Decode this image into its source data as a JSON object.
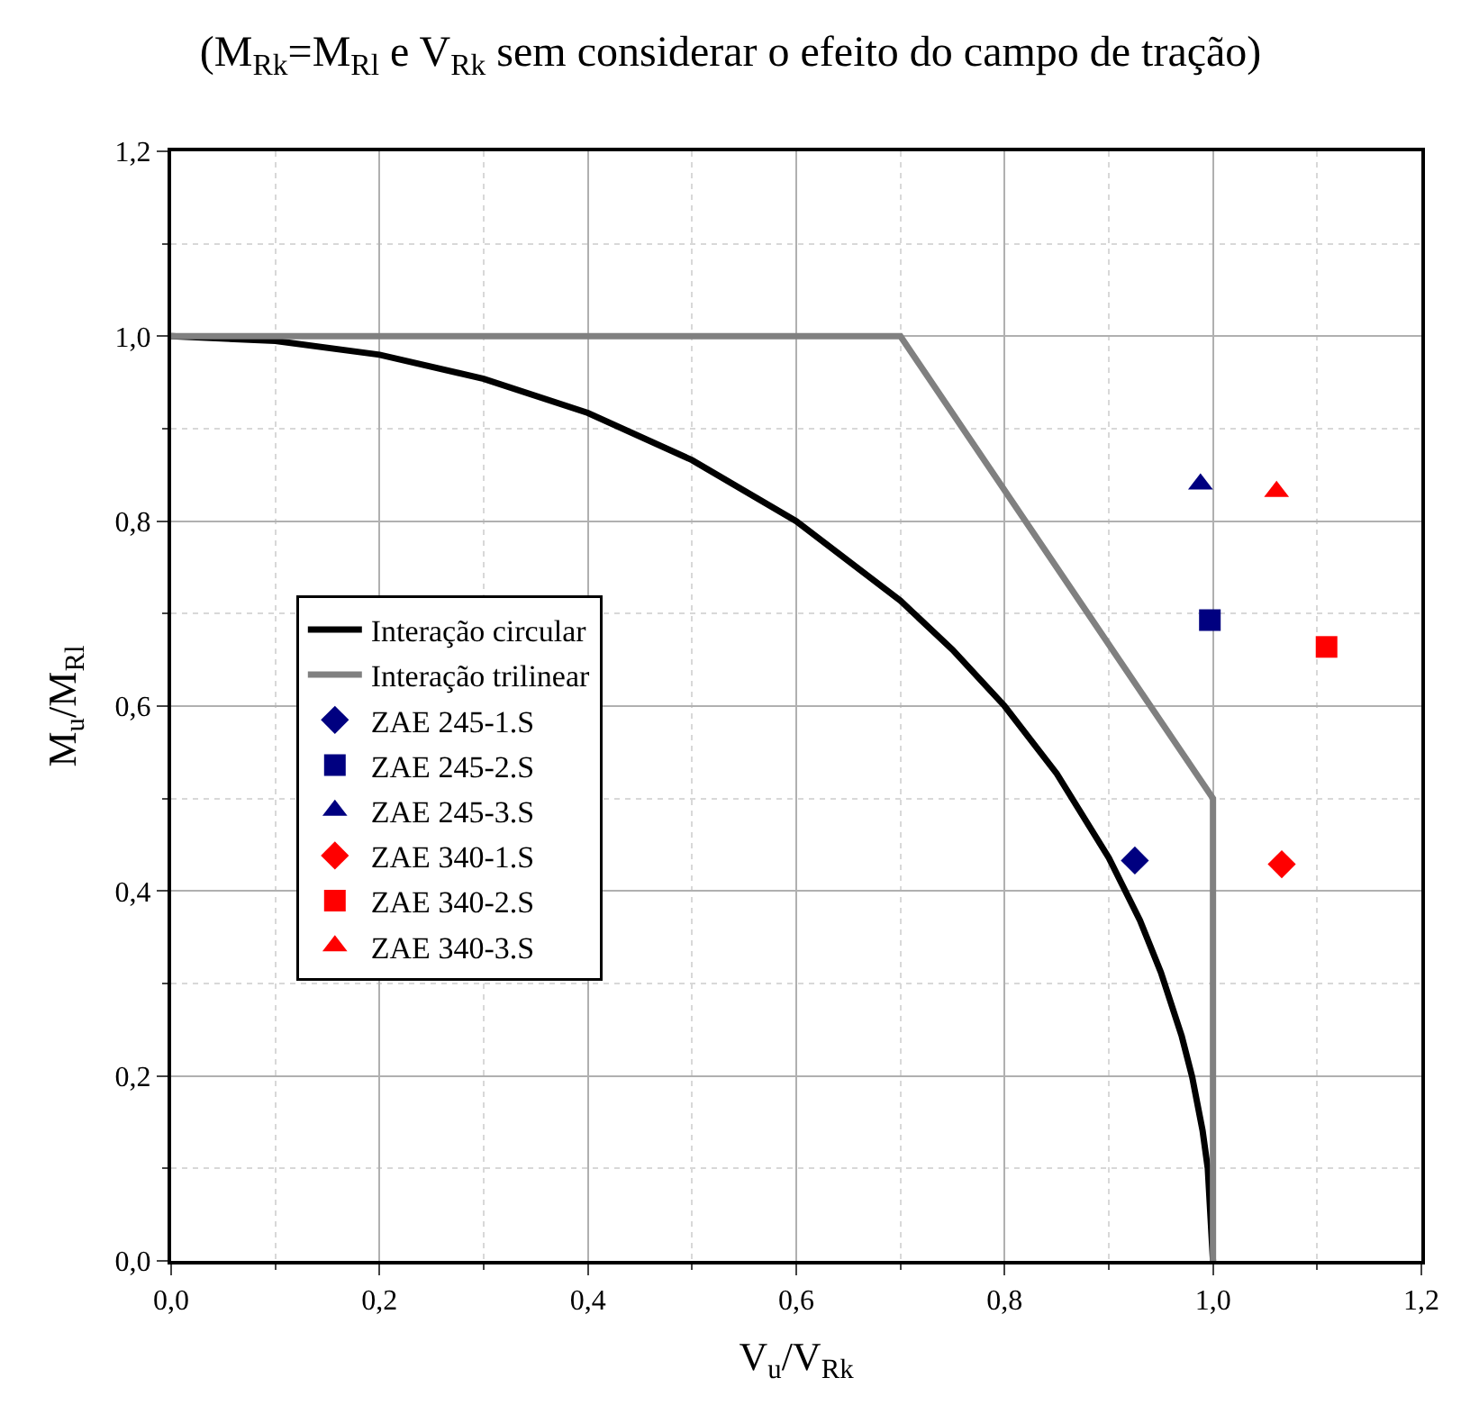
{
  "chart_data": {
    "type": "scatter",
    "title": "(M$_{Rk}$=M$_{Rl}$ e V$_{Rk}$ sem considerar o efeito do campo de tração)",
    "xlabel": "V$_{u}$/V$_{Rk}$",
    "ylabel": "M$_{u}$/M$_{Rl}$",
    "xlim": [
      0,
      1.2
    ],
    "ylim": [
      0,
      1.2
    ],
    "xticks": [
      {
        "value": 0,
        "label": "0,0"
      },
      {
        "value": 0.2,
        "label": "0,2"
      },
      {
        "value": 0.4,
        "label": "0,4"
      },
      {
        "value": 0.6,
        "label": "0,6"
      },
      {
        "value": 0.8,
        "label": "0,8"
      },
      {
        "value": 1.0,
        "label": "1,0"
      },
      {
        "value": 1.2,
        "label": "1,2"
      }
    ],
    "yticks": [
      {
        "value": 0,
        "label": "0,0"
      },
      {
        "value": 0.2,
        "label": "0,2"
      },
      {
        "value": 0.4,
        "label": "0,4"
      },
      {
        "value": 0.6,
        "label": "0,6"
      },
      {
        "value": 0.8,
        "label": "0,8"
      },
      {
        "value": 1.0,
        "label": "1,0"
      },
      {
        "value": 1.2,
        "label": "1,2"
      }
    ],
    "grid": true,
    "legend": "left",
    "series": [
      {
        "name": "Interação circular",
        "type": "line",
        "color": "#000000",
        "marker": "none",
        "x": [
          0,
          0.1,
          0.2,
          0.3,
          0.4,
          0.5,
          0.6,
          0.7,
          0.75,
          0.8,
          0.85,
          0.9,
          0.93,
          0.95,
          0.97,
          0.98,
          0.99,
          0.995,
          1.0
        ],
        "values": [
          1.0,
          0.995,
          0.98,
          0.954,
          0.917,
          0.866,
          0.8,
          0.714,
          0.661,
          0.6,
          0.527,
          0.436,
          0.368,
          0.312,
          0.243,
          0.199,
          0.141,
          0.1,
          0.0
        ]
      },
      {
        "name": "Interação trilinear",
        "type": "line",
        "color": "#808080",
        "marker": "none",
        "x": [
          0,
          0.7,
          1.0,
          1.0
        ],
        "values": [
          1.0,
          1.0,
          0.5,
          0.0
        ]
      },
      {
        "name": "ZAE 245-1.S",
        "color": "#000080",
        "marker": "diamond",
        "x": [
          0.925
        ],
        "values": [
          0.433
        ]
      },
      {
        "name": "ZAE 245-2.S",
        "color": "#000080",
        "marker": "square",
        "x": [
          0.997
        ],
        "values": [
          0.693
        ]
      },
      {
        "name": "ZAE 245-3.S",
        "color": "#000080",
        "marker": "triangle",
        "x": [
          0.988
        ],
        "values": [
          0.84
        ]
      },
      {
        "name": "ZAE 340-1.S",
        "color": "#ff0000",
        "marker": "diamond",
        "x": [
          1.066
        ],
        "values": [
          0.429
        ]
      },
      {
        "name": "ZAE 340-2.S",
        "color": "#ff0000",
        "marker": "square",
        "x": [
          1.109
        ],
        "values": [
          0.664
        ]
      },
      {
        "name": "ZAE 340-3.S",
        "color": "#ff0000",
        "marker": "triangle",
        "x": [
          1.061
        ],
        "values": [
          0.832
        ]
      }
    ]
  }
}
